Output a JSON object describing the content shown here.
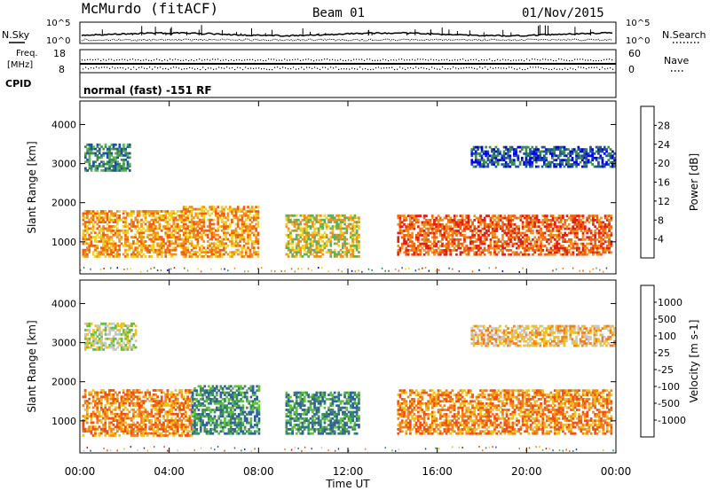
{
  "header": {
    "station": "McMurdo (fitACF)",
    "beam": "Beam 01",
    "date": "01/Nov/2015"
  },
  "noise_panel": {
    "left_label": "N.Sky",
    "right_label": "N.Search",
    "tick_top": "10^5",
    "tick_bottom": "10^0",
    "right_tick_top": "10^5",
    "right_tick_bottom": "10^0"
  },
  "freq_panel": {
    "left_label_line1": "Freq.",
    "left_label_line2": "[MHz]",
    "right_label": "Nave",
    "tick_top": "18",
    "tick_bottom": "8",
    "right_tick_top": "60",
    "right_tick_bottom": "0"
  },
  "cpid_panel": {
    "label": "CPID",
    "mode_text": "normal (fast) -151 RF"
  },
  "x_axis": {
    "title": "Time UT",
    "ticks": [
      "00:00",
      "04:00",
      "08:00",
      "12:00",
      "16:00",
      "20:00",
      "00:00"
    ]
  },
  "chart_data": [
    {
      "type": "heatmap",
      "quantity": "Power",
      "ylabel": "Slant Range [km]",
      "xlabel": "Time UT",
      "xlim_hours": [
        0,
        24
      ],
      "ylim": [
        180,
        4600
      ],
      "yticks": [
        1000,
        2000,
        3000,
        4000
      ],
      "colorbar": {
        "label": "Power [dB]",
        "ticks": [
          "28",
          "24",
          "20",
          "16",
          "12",
          "8",
          "4"
        ],
        "colors": [
          "#0000ee",
          "#2050a0",
          "#3c8c50",
          "#60b060",
          "#f0d020",
          "#f09020",
          "#f06010",
          "#e02010"
        ]
      },
      "echo_regions": [
        {
          "t0": 0.1,
          "t1": 4.6,
          "r0": 600,
          "r1": 1800,
          "level": 5
        },
        {
          "t0": 4.6,
          "t1": 8.0,
          "r0": 600,
          "r1": 1900,
          "level": 5
        },
        {
          "t0": 9.2,
          "t1": 12.5,
          "r0": 600,
          "r1": 1700,
          "level": 4
        },
        {
          "t0": 14.2,
          "t1": 23.8,
          "r0": 650,
          "r1": 1650,
          "level": 6
        },
        {
          "t0": 0.2,
          "t1": 2.2,
          "r0": 2800,
          "r1": 3500,
          "level": 2
        },
        {
          "t0": 17.5,
          "t1": 23.9,
          "r0": 2900,
          "r1": 3400,
          "level": 1
        }
      ]
    },
    {
      "type": "heatmap",
      "quantity": "Velocity",
      "ylabel": "Slant Range [km]",
      "xlabel": "Time UT",
      "xlim_hours": [
        0,
        24
      ],
      "ylim": [
        180,
        4600
      ],
      "yticks": [
        1000,
        2000,
        3000,
        4000
      ],
      "colorbar": {
        "label": "Velocity [m s-1]",
        "ticks": [
          "1000",
          "500",
          "100",
          "25",
          "-25",
          "-100",
          "-500",
          "-1000"
        ],
        "colors": [
          "#2040c0",
          "#3060a0",
          "#3c8c60",
          "#60c040",
          "#c8c8c8",
          "#f0c020",
          "#f08020",
          "#f05010",
          "#e01010"
        ]
      },
      "echo_regions": [
        {
          "t0": 0.1,
          "t1": 5.0,
          "r0": 600,
          "r1": 1800,
          "level": 6
        },
        {
          "t0": 5.0,
          "t1": 8.0,
          "r0": 650,
          "r1": 1900,
          "level": 2
        },
        {
          "t0": 9.2,
          "t1": 12.5,
          "r0": 650,
          "r1": 1700,
          "level": 2
        },
        {
          "t0": 14.2,
          "t1": 23.8,
          "r0": 650,
          "r1": 1800,
          "level": 6
        },
        {
          "t0": 0.2,
          "t1": 2.5,
          "r0": 2800,
          "r1": 3500,
          "level": 4
        },
        {
          "t0": 17.5,
          "t1": 23.9,
          "r0": 2900,
          "r1": 3400,
          "level": 5
        }
      ]
    }
  ]
}
